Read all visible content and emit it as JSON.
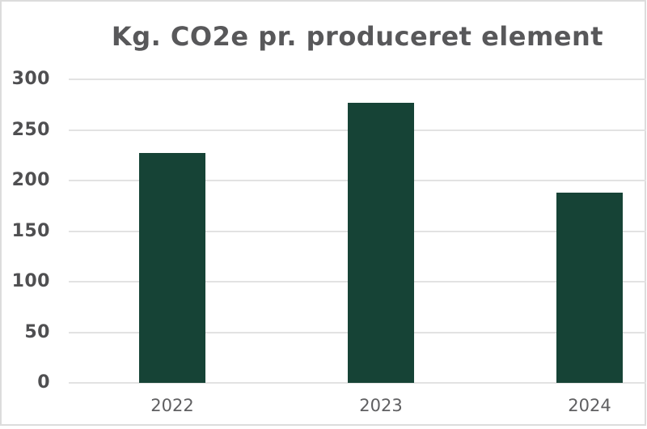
{
  "chart_data": {
    "type": "bar",
    "title": "Kg. CO2e pr. produceret element",
    "categories": [
      "2022",
      "2023",
      "2024"
    ],
    "values": [
      227,
      277,
      188
    ],
    "xlabel": "",
    "ylabel": "",
    "ylim": [
      0,
      300
    ],
    "yticks": [
      0,
      50,
      100,
      150,
      200,
      250,
      300
    ],
    "grid": true,
    "legend": false,
    "bar_color": "#164336",
    "gridline_color": "#e2e2e2",
    "title_color": "#58585a",
    "y_label_color": "#4f4f51",
    "x_label_color": "#5f5f61",
    "card_border_color": "#dcdcdc",
    "background_color": "#ffffff"
  }
}
